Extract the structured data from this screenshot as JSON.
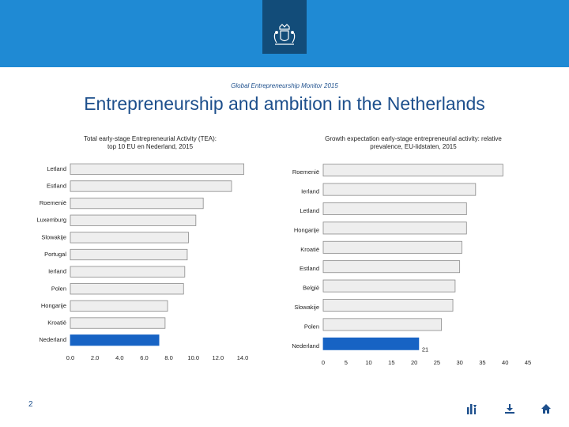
{
  "header": {
    "subtitle": "Global Entrepreneurship Monitor 2015",
    "title": "Entrepreneurship and ambition in the Netherlands"
  },
  "footer": {
    "page": "2"
  },
  "colors": {
    "bar": "#eeeeee",
    "bar_edge": "#8a8a8a",
    "highlight": "#1763c4",
    "topbar": "#1f8ad4",
    "emblem": "#124c79",
    "nav": "#1d4f8c"
  },
  "icons": [
    "emblem-icon",
    "contents-icon",
    "download-icon",
    "home-icon"
  ],
  "chart_data": [
    {
      "type": "bar",
      "orientation": "horizontal",
      "title": "Total early-stage Entrepreneurial Activity (TEA): top 10 EU en Nederland, 2015",
      "title_lines": [
        "Total early-stage Entrepreneurial Activity (TEA):",
        "top 10 EU en Nederland, 2015"
      ],
      "categories": [
        "Letland",
        "Estland",
        "Roemenië",
        "Luxemburg",
        "Slowakije",
        "Portugal",
        "Ierland",
        "Polen",
        "Hongarije",
        "Kroatië",
        "Nederland"
      ],
      "values": [
        14.1,
        13.1,
        10.8,
        10.2,
        9.6,
        9.5,
        9.3,
        9.2,
        7.9,
        7.7,
        7.2
      ],
      "highlight": "Nederland",
      "xlim": [
        0,
        14
      ],
      "xticks": [
        0,
        2,
        4,
        6,
        8,
        10,
        12,
        14
      ],
      "xtick_labels": [
        "0.0",
        "2.0",
        "4.0",
        "6.0",
        "8.0",
        "10.0",
        "12.0",
        "14.0"
      ]
    },
    {
      "type": "bar",
      "orientation": "horizontal",
      "title": "Growth expectation early-stage entrepreneurial activity: relative prevalence, EU-lidstaten, 2015",
      "title_lines": [
        "Growth expectation early-stage entrepreneurial activity: relative",
        "prevalence, EU-lidstaten, 2015"
      ],
      "categories": [
        "Roemenië",
        "Ierland",
        "Letland",
        "Hongarije",
        "Kroatië",
        "Estland",
        "België",
        "Slowakije",
        "Polen",
        "Nederland"
      ],
      "values": [
        39.5,
        33.5,
        31.5,
        31.5,
        30.5,
        30.0,
        29.0,
        28.5,
        26.0,
        21
      ],
      "highlight": "Nederland",
      "data_labels": {
        "Nederland": "21"
      },
      "xlim": [
        0,
        45
      ],
      "xticks": [
        0,
        5,
        10,
        15,
        20,
        25,
        30,
        35,
        40,
        45
      ],
      "xtick_labels": [
        "0",
        "5",
        "10",
        "15",
        "20",
        "25",
        "30",
        "35",
        "40",
        "45"
      ]
    }
  ]
}
